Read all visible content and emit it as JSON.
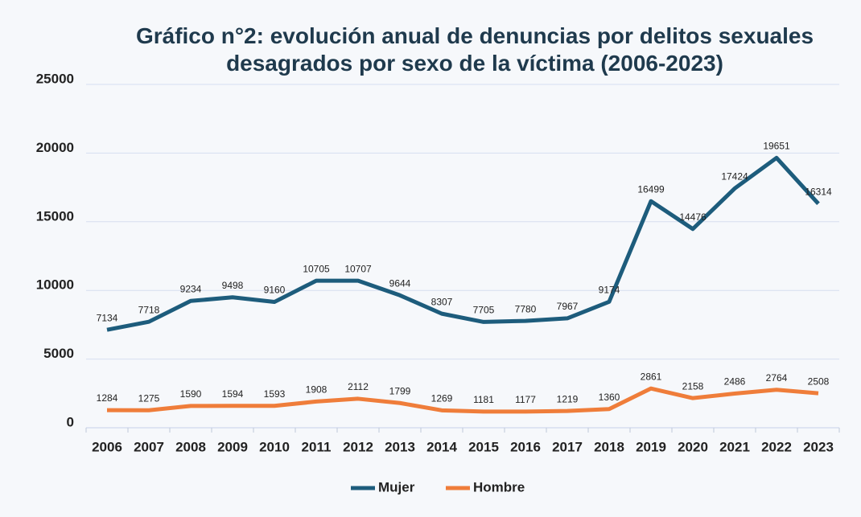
{
  "chart_data": {
    "type": "line",
    "title": "Gráfico n°2: evolución anual de denuncias por delitos sexuales desagrados por sexo de la víctima (2006-2023)",
    "categories": [
      "2006",
      "2007",
      "2008",
      "2009",
      "2010",
      "2011",
      "2012",
      "2013",
      "2014",
      "2015",
      "2016",
      "2017",
      "2018",
      "2019",
      "2020",
      "2021",
      "2022",
      "2023"
    ],
    "series": [
      {
        "name": "Mujer",
        "color": "#1d5c7c",
        "values": [
          7134,
          7718,
          9234,
          9498,
          9160,
          10705,
          10707,
          9644,
          8307,
          7705,
          7780,
          7967,
          9174,
          16499,
          14476,
          17424,
          19651,
          16314
        ]
      },
      {
        "name": "Hombre",
        "color": "#ef7d3a",
        "values": [
          1284,
          1275,
          1590,
          1594,
          1593,
          1908,
          2112,
          1799,
          1269,
          1181,
          1177,
          1219,
          1360,
          2861,
          2158,
          2486,
          2764,
          2508
        ]
      }
    ],
    "ylim": [
      0,
      25000
    ],
    "yticks": [
      0,
      5000,
      10000,
      15000,
      20000,
      25000
    ],
    "grid": true,
    "legend": "bottom"
  }
}
